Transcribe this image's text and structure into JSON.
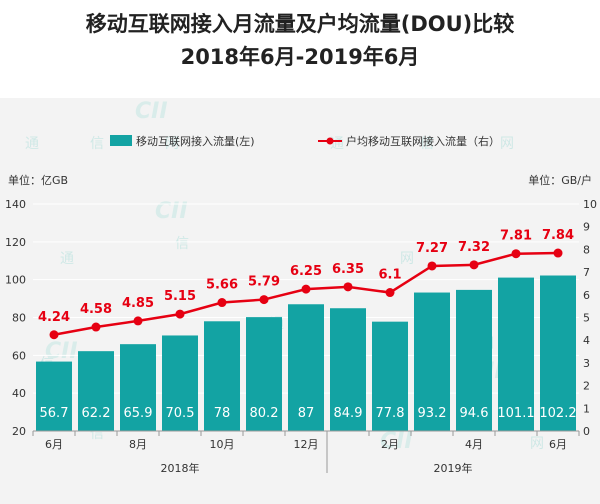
{
  "title_line1": "移动互联网接入月流量及户均流量(DOU)比较",
  "title_line2": "2018年6月-2019年6月",
  "colors": {
    "bar": "#13a3a3",
    "line": "#e60012",
    "label_line": "#e60012",
    "label_bar": "#ffffff",
    "background": "#f3f3f3"
  },
  "chart_data": {
    "type": "bar+line",
    "categories": [
      "2018-06",
      "2018-07",
      "2018-08",
      "2018-09",
      "2018-10",
      "2018-11",
      "2018-12",
      "2019-01",
      "2019-02",
      "2019-03",
      "2019-04",
      "2019-05",
      "2019-06"
    ],
    "x_tick_labels": [
      "6月",
      "",
      "8月",
      "",
      "10月",
      "",
      "12月",
      "",
      "2月",
      "",
      "4月",
      "",
      "6月"
    ],
    "x_group_labels": [
      {
        "label": "2018年",
        "from": 0,
        "to": 6
      },
      {
        "label": "2019年",
        "from": 7,
        "to": 12
      }
    ],
    "series": [
      {
        "name": "移动互联网接入流量(左)",
        "type": "bar",
        "axis": "left",
        "values": [
          56.7,
          62.2,
          65.9,
          70.5,
          78,
          80.2,
          87,
          84.9,
          77.8,
          93.2,
          94.6,
          101.1,
          102.2
        ]
      },
      {
        "name": "户均移动互联网接入流量（右）",
        "type": "line",
        "axis": "right",
        "values": [
          4.24,
          4.58,
          4.85,
          5.15,
          5.66,
          5.79,
          6.25,
          6.35,
          6.1,
          7.27,
          7.32,
          7.81,
          7.84
        ]
      }
    ],
    "y_left": {
      "label": "单位：亿GB",
      "ylim": [
        20,
        140
      ],
      "ticks": [
        20,
        40,
        60,
        80,
        100,
        120,
        140
      ]
    },
    "y_right": {
      "label": "单位：GB/户",
      "ylim": [
        0,
        10
      ],
      "ticks": [
        0,
        1,
        2,
        3,
        4,
        5,
        6,
        7,
        8,
        9,
        10
      ]
    },
    "grid": true,
    "legend_position": "top"
  },
  "watermark": {
    "text_chars": [
      "通",
      "信",
      "网"
    ],
    "logo_text": "CII"
  }
}
